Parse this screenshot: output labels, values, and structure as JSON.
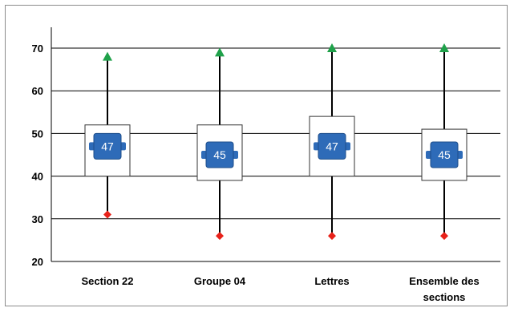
{
  "chart_data": {
    "type": "boxplot",
    "title": "",
    "xlabel": "",
    "ylabel": "",
    "ylim": [
      20,
      75
    ],
    "yticks": [
      20,
      30,
      40,
      50,
      60,
      70
    ],
    "grid": true,
    "categories": [
      {
        "label_lines": [
          "Section 22"
        ],
        "min": 31,
        "q1": 40,
        "median": 47,
        "q3": 52,
        "max": 68,
        "mean": 47
      },
      {
        "label_lines": [
          "Groupe 04"
        ],
        "min": 26,
        "q1": 39,
        "median": 45,
        "q3": 52,
        "max": 69,
        "mean": 45
      },
      {
        "label_lines": [
          "Lettres"
        ],
        "min": 26,
        "q1": 40,
        "median": 47,
        "q3": 54,
        "max": 70,
        "mean": 47
      },
      {
        "label_lines": [
          "Ensemble des",
          "sections"
        ],
        "min": 26,
        "q1": 39,
        "median": 45,
        "q3": 51,
        "max": 70,
        "mean": 45
      }
    ],
    "colors": {
      "max_marker": "#1fa14a",
      "min_marker": "#e8221a",
      "mean_badge": "#2e6bb8",
      "box_fill": "#ffffff",
      "box_stroke": "#333333",
      "grid": "#000000"
    }
  }
}
